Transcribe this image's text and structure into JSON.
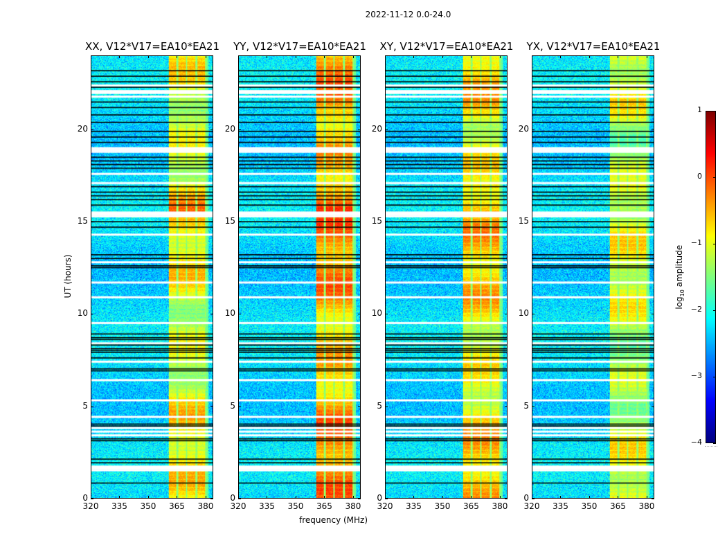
{
  "figure": {
    "suptitle": "2022-11-12 0.0-24.0",
    "xlabel": "frequency (MHz)",
    "ylabel": "UT (hours)",
    "colorbar_label_prefix": "log",
    "colorbar_label_sub": "10",
    "colorbar_label_suffix": " amplitude",
    "colormap": "jet"
  },
  "chart_data": {
    "type": "heatmap",
    "title": "2022-11-12 0.0-24.0",
    "xlabel": "frequency (MHz)",
    "ylabel": "UT (hours)",
    "xlim": [
      320,
      384
    ],
    "ylim": [
      0,
      24
    ],
    "xticks": [
      320,
      335,
      350,
      365,
      380
    ],
    "yticks": [
      0,
      5,
      10,
      15,
      20
    ],
    "colorbar": {
      "label": "log10 amplitude",
      "range": [
        -4,
        1
      ],
      "ticks": [
        1,
        0,
        -1,
        -2,
        -3,
        -4
      ]
    },
    "background_level_log10": -2.3,
    "rfi_band_mhz": [
      360.5,
      380.5
    ],
    "rfi_subbands_mhz": [
      [
        360.5,
        364.8
      ],
      [
        365.6,
        369.8
      ],
      [
        370.6,
        374.9
      ],
      [
        375.7,
        379.9
      ]
    ],
    "flagged_rows_white_hours": [
      1.5,
      1.6,
      1.7,
      3.4,
      3.6,
      3.8,
      4.4,
      5.3,
      6.4,
      7.4,
      8.4,
      9.5,
      10.9,
      11.7,
      12.8,
      14.3,
      15.3,
      15.4,
      15.5,
      17.1,
      17.6,
      18.8,
      18.9,
      19.0,
      21.8,
      22.0,
      22.1,
      22.4
    ],
    "flagged_rows_black_hours": [
      0.8,
      1.9,
      2.1,
      3.1,
      3.2,
      3.9,
      4.0,
      6.9,
      7.0,
      7.6,
      7.9,
      8.0,
      8.1,
      8.3,
      8.6,
      8.7,
      8.9,
      12.5,
      12.6,
      13.0,
      13.2,
      14.7,
      15.0,
      15.9,
      16.2,
      16.4,
      16.6,
      16.9,
      17.9,
      18.1,
      18.3,
      18.5,
      19.3,
      19.6,
      19.9,
      20.4,
      20.8,
      21.2,
      21.5,
      22.3,
      22.6,
      22.9,
      23.2
    ],
    "panels": [
      {
        "name": "XX",
        "title": "XX, V12*V17=EA10*EA21",
        "rfi_peak_log10": 0.1
      },
      {
        "name": "YY",
        "title": "YY, V12*V17=EA10*EA21",
        "rfi_peak_log10": 0.6
      },
      {
        "name": "XY",
        "title": "XY, V12*V17=EA10*EA21",
        "rfi_peak_log10": 0.3
      },
      {
        "name": "YX",
        "title": "YX, V12*V17=EA10*EA21",
        "rfi_peak_log10": -0.1
      }
    ]
  }
}
